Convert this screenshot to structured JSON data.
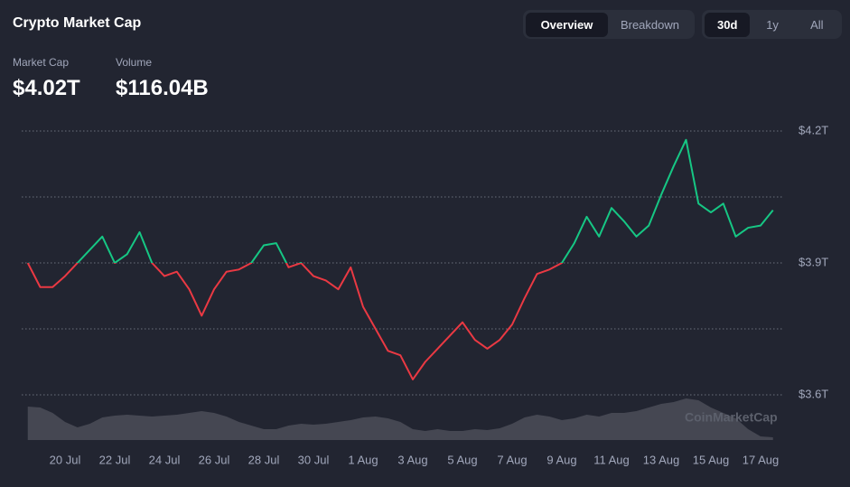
{
  "header": {
    "title": "Crypto Market Cap",
    "tabs": [
      "Overview",
      "Breakdown"
    ],
    "active_tab": 0,
    "ranges": [
      "30d",
      "1y",
      "All"
    ],
    "active_range": 0,
    "stats": [
      {
        "label": "Market Cap",
        "value": "$4.02T"
      },
      {
        "label": "Volume",
        "value": "$116.04B"
      }
    ]
  },
  "chart_data": {
    "type": "line",
    "watermark": "CoinMarketCap",
    "categories": [
      null,
      null,
      null,
      "20 Jul",
      null,
      null,
      null,
      "22 Jul",
      null,
      null,
      null,
      "24 Jul",
      null,
      null,
      null,
      "26 Jul",
      null,
      null,
      null,
      "28 Jul",
      null,
      null,
      null,
      "30 Jul",
      null,
      null,
      null,
      "1 Aug",
      null,
      null,
      null,
      "3 Aug",
      null,
      null,
      null,
      "5 Aug",
      null,
      null,
      null,
      "7 Aug",
      null,
      null,
      null,
      "9 Aug",
      null,
      null,
      null,
      "11 Aug",
      null,
      null,
      null,
      "13 Aug",
      null,
      null,
      null,
      "15 Aug",
      null,
      null,
      null,
      "17 Aug",
      null
    ],
    "values": [
      3.9,
      3.845,
      3.845,
      3.87,
      3.9,
      3.93,
      3.96,
      3.9,
      3.92,
      3.97,
      3.9,
      3.87,
      3.88,
      3.84,
      3.78,
      3.84,
      3.88,
      3.885,
      3.9,
      3.94,
      3.945,
      3.89,
      3.9,
      3.87,
      3.86,
      3.84,
      3.89,
      3.8,
      3.75,
      3.7,
      3.69,
      3.635,
      3.675,
      3.705,
      3.735,
      3.765,
      3.725,
      3.705,
      3.725,
      3.76,
      3.82,
      3.875,
      3.885,
      3.9,
      3.945,
      4.005,
      3.96,
      4.025,
      3.995,
      3.96,
      3.985,
      4.055,
      4.12,
      4.18,
      4.035,
      4.015,
      4.035,
      3.96,
      3.98,
      3.985,
      4.02
    ],
    "baseline": 3.9,
    "up_color": "#16c784",
    "down_color": "#ea3943",
    "ylim": [
      3.6,
      4.2
    ],
    "yticks": [
      {
        "value": 4.2,
        "label": "$4.2T"
      },
      {
        "value": 3.9,
        "label": "$3.9T"
      },
      {
        "value": 3.6,
        "label": "$3.6T"
      }
    ],
    "minor_yticks": [
      4.05,
      3.75
    ],
    "grid": true,
    "volume": {
      "color": "#4b4e58",
      "ylim": [
        0,
        200
      ],
      "values": [
        148,
        144,
        120,
        80,
        56,
        72,
        100,
        108,
        112,
        108,
        104,
        108,
        112,
        120,
        128,
        120,
        104,
        80,
        64,
        48,
        48,
        64,
        72,
        68,
        72,
        80,
        88,
        100,
        104,
        96,
        80,
        48,
        40,
        48,
        40,
        40,
        48,
        44,
        52,
        72,
        100,
        112,
        104,
        88,
        96,
        112,
        104,
        120,
        120,
        128,
        144,
        160,
        168,
        184,
        176,
        144,
        120,
        96,
        48,
        16,
        12
      ]
    }
  }
}
